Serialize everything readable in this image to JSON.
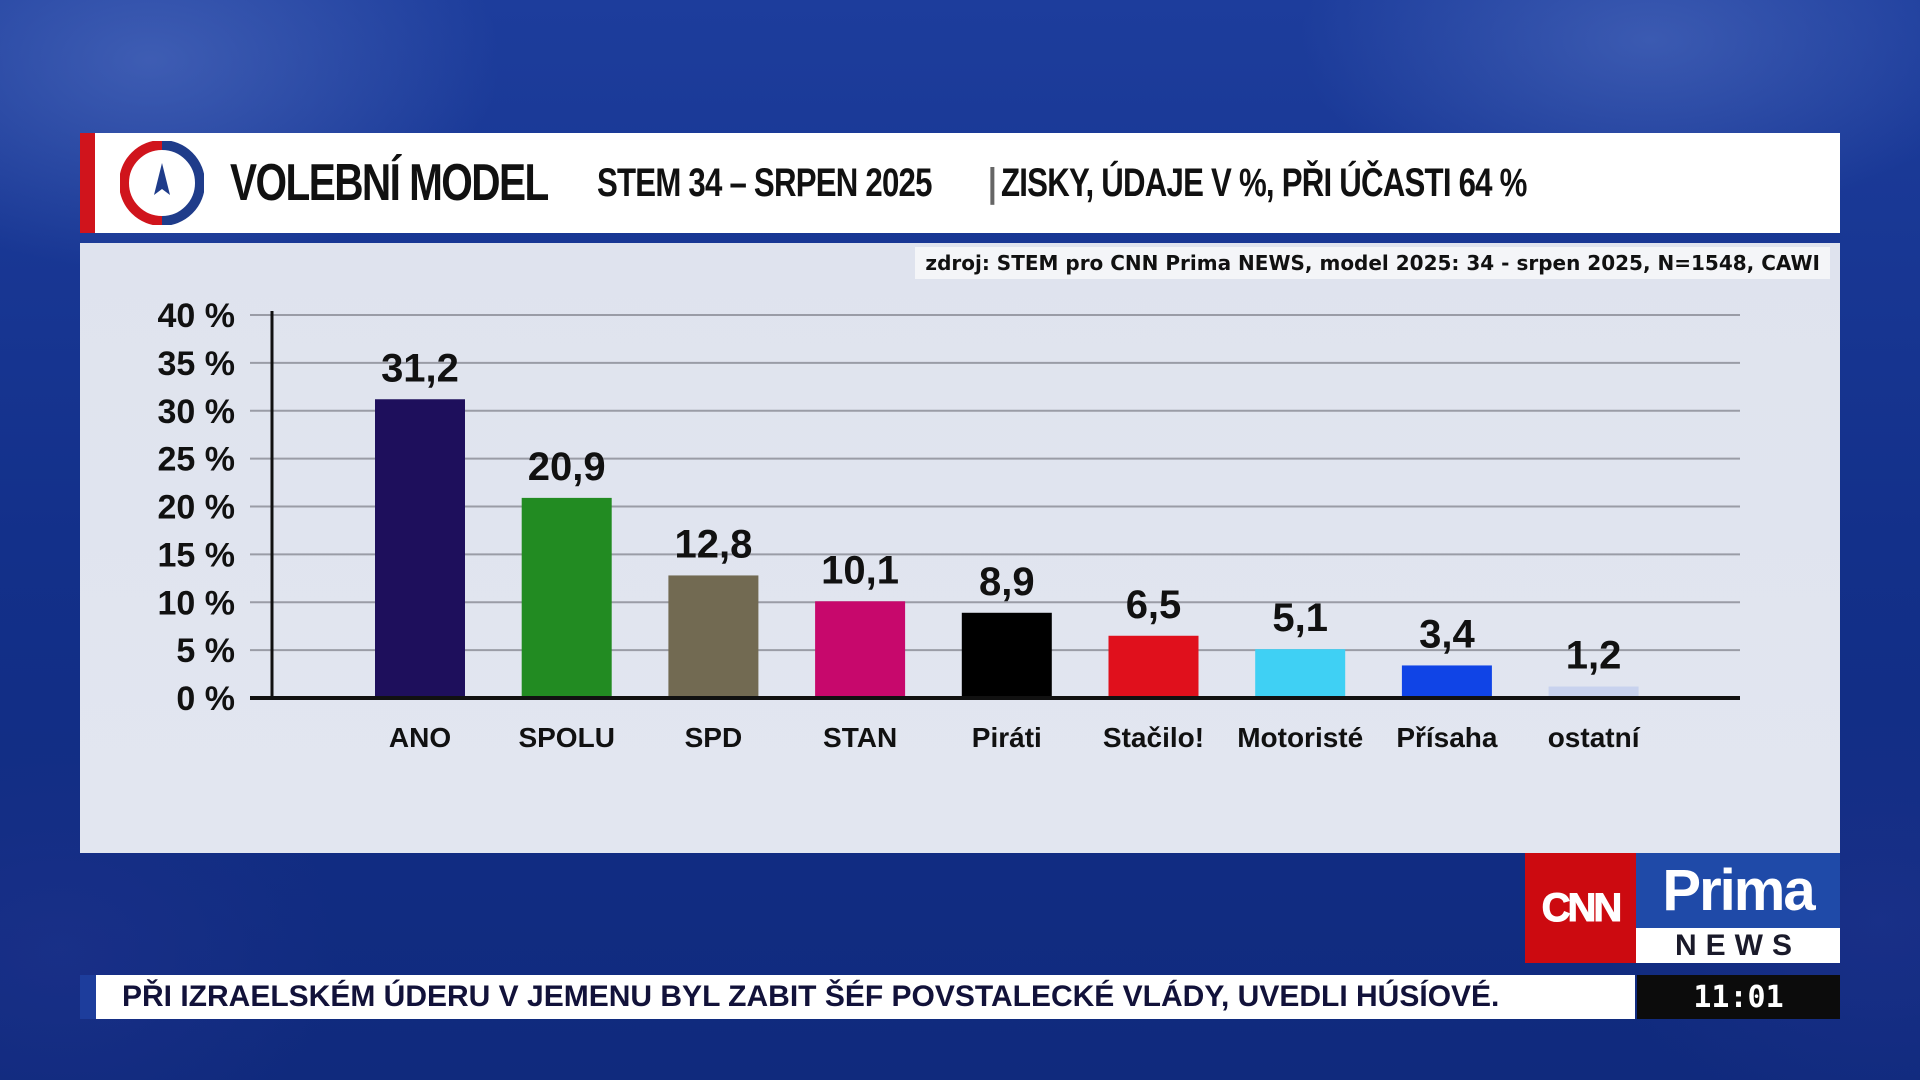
{
  "header": {
    "title": "VOLEBNÍ MODEL",
    "subtitle": "STEM 34 – SRPEN 2025",
    "separator": "|",
    "detail": "ZISKY, ÚDAJE V %, PŘI ÚČASTI 64 %"
  },
  "source": "zdroj: STEM pro CNN Prima NEWS, model 2025: 34 - srpen 2025, N=1548, CAWI",
  "chart_data": {
    "type": "bar",
    "categories": [
      "ANO",
      "SPOLU",
      "SPD",
      "STAN",
      "Piráti",
      "Stačilo!",
      "Motoristé",
      "Přísaha",
      "ostatní"
    ],
    "values": [
      31.2,
      20.9,
      12.8,
      10.1,
      8.9,
      6.5,
      5.1,
      3.4,
      1.2
    ],
    "value_labels": [
      "31,2",
      "20,9",
      "12,8",
      "10,1",
      "8,9",
      "6,5",
      "5,1",
      "3,4",
      "1,2"
    ],
    "colors": [
      "#1e0f5c",
      "#228b22",
      "#726a52",
      "#c7086c",
      "#000000",
      "#e0101c",
      "#3fd0f4",
      "#1044e6",
      "#c8d2ee"
    ],
    "ylim": [
      0,
      40
    ],
    "yticks": [
      {
        "value": 0,
        "label": "0 %"
      },
      {
        "value": 5,
        "label": "5 %"
      },
      {
        "value": 10,
        "label": "10 %"
      },
      {
        "value": 15,
        "label": "15 %"
      },
      {
        "value": 20,
        "label": "20 %"
      },
      {
        "value": 25,
        "label": "25 %"
      },
      {
        "value": 30,
        "label": "30 %"
      },
      {
        "value": 35,
        "label": "35 %"
      },
      {
        "value": 40,
        "label": "40 %"
      }
    ],
    "grid": true
  },
  "brand": {
    "cnn": "CNN",
    "prima": "Prima",
    "news": "NEWS"
  },
  "ticker": {
    "text": "PŘI IZRAELSKÉM ÚDERU V JEMENU BYL ZABIT ŠÉF POVSTALECKÉ VLÁDY, UVEDLI HÚSÍOVÉ.",
    "time": "11:01"
  }
}
